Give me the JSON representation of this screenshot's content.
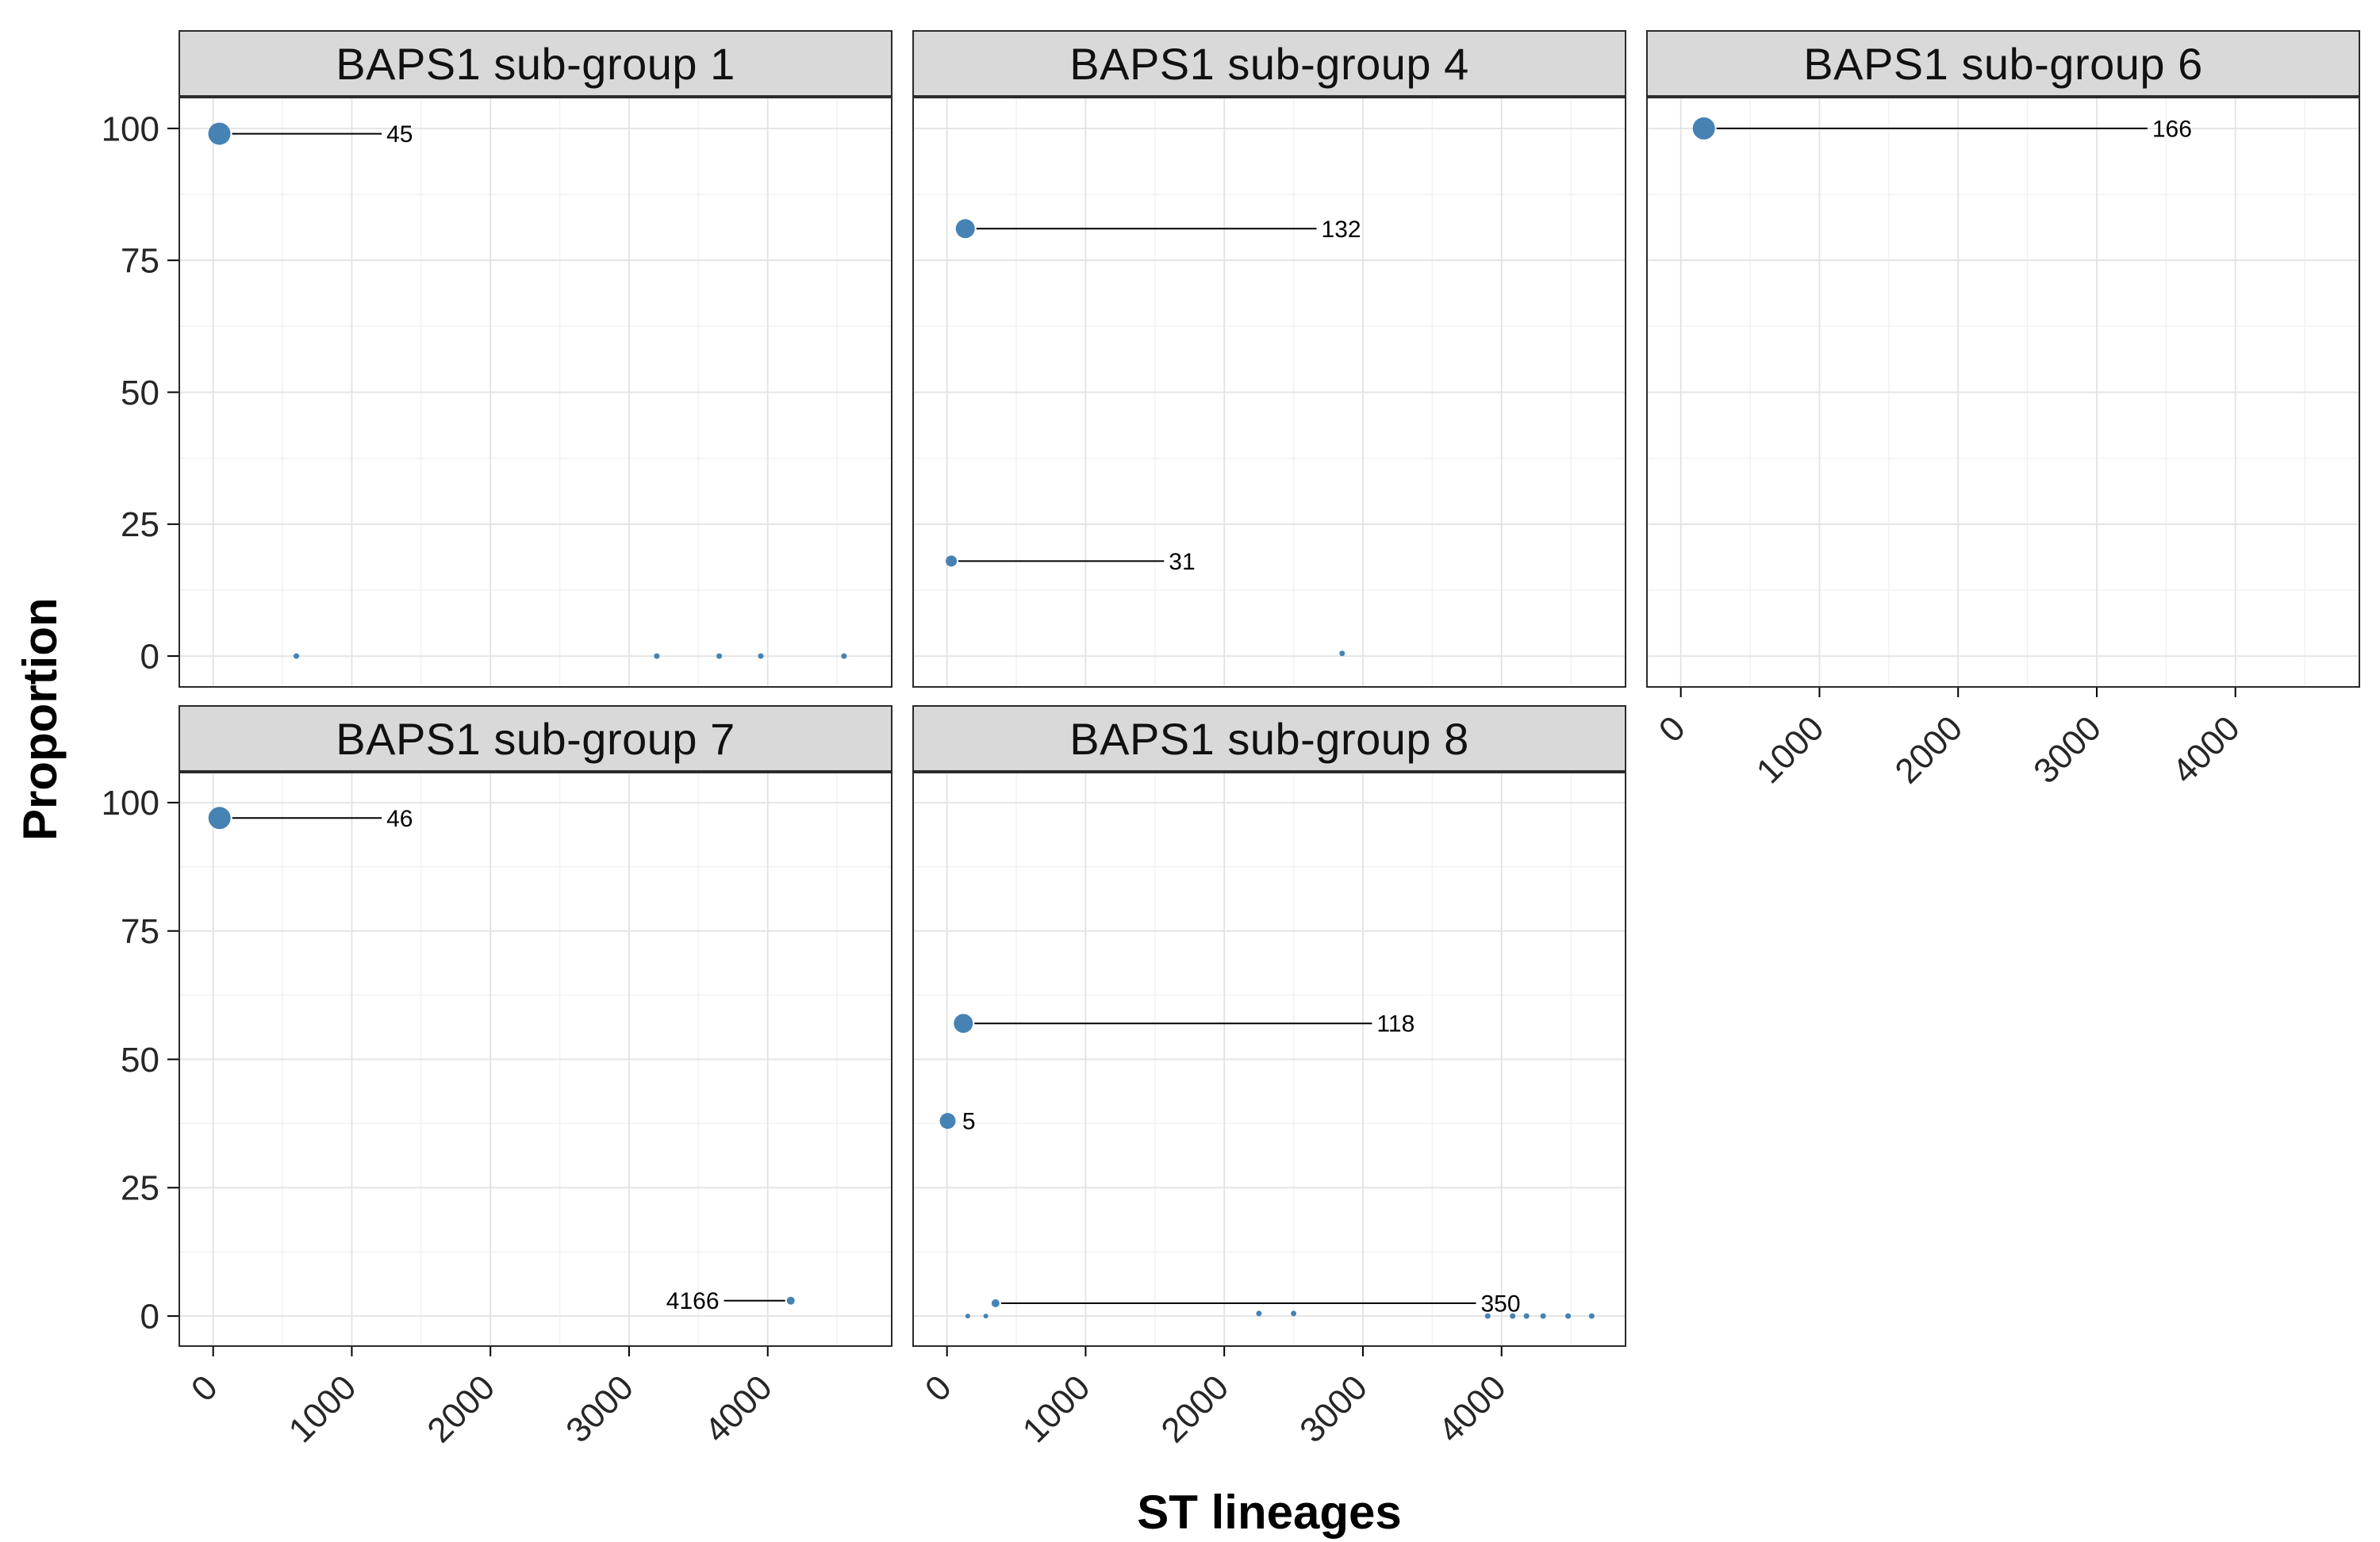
{
  "chart_data": {
    "type": "scatter",
    "xlabel": "ST lineages",
    "ylabel": "Proportion",
    "x_domain": [
      -250,
      4900
    ],
    "y_domain": [
      -6,
      106
    ],
    "x_ticks": [
      0,
      1000,
      2000,
      3000,
      4000
    ],
    "x_minor_ticks": [
      500,
      1500,
      2500,
      3500,
      4500
    ],
    "y_ticks": [
      0,
      25,
      50,
      75,
      100
    ],
    "y_minor_ticks": [
      12.5,
      37.5,
      62.5,
      87.5
    ],
    "point_color": "#4682B4",
    "strip_bg": "#d9d9d9",
    "panel_border": "#2b2b2b",
    "grid": true,
    "legend": "none",
    "layout": {
      "rows": 2,
      "cols": 3
    },
    "panels": [
      {
        "title": "BAPS1 sub-group 1",
        "points": [
          {
            "x": 45,
            "y": 99,
            "r": 14,
            "label": "45",
            "label_x": 1250
          },
          {
            "x": 600,
            "y": 0,
            "r": 3.5
          },
          {
            "x": 3200,
            "y": 0,
            "r": 3.5
          },
          {
            "x": 3650,
            "y": 0,
            "r": 3.5
          },
          {
            "x": 3950,
            "y": 0,
            "r": 3.5
          },
          {
            "x": 4550,
            "y": 0,
            "r": 3.5
          }
        ]
      },
      {
        "title": "BAPS1 sub-group 4",
        "points": [
          {
            "x": 132,
            "y": 81,
            "r": 12,
            "label": "132",
            "label_x": 2700
          },
          {
            "x": 31,
            "y": 18,
            "r": 7,
            "label": "31",
            "label_x": 1600
          },
          {
            "x": 2850,
            "y": 0.5,
            "r": 3.5
          }
        ]
      },
      {
        "title": "BAPS1 sub-group 6",
        "points": [
          {
            "x": 166,
            "y": 100,
            "r": 14,
            "label": "166",
            "label_x": 3400
          }
        ]
      },
      {
        "title": "BAPS1 sub-group 7",
        "points": [
          {
            "x": 46,
            "y": 97,
            "r": 14,
            "label": "46",
            "label_x": 1250
          },
          {
            "x": 4166,
            "y": 3,
            "r": 5,
            "label": "4166",
            "label_x": 3650,
            "label_side": "left"
          }
        ]
      },
      {
        "title": "BAPS1 sub-group 8",
        "points": [
          {
            "x": 118,
            "y": 57,
            "r": 12,
            "label": "118",
            "label_x": 3100
          },
          {
            "x": 5,
            "y": 38,
            "r": 10,
            "label": "5",
            "label_x": 110,
            "leader": false
          },
          {
            "x": 350,
            "y": 2.5,
            "r": 5,
            "label": "350",
            "label_x": 3850
          },
          {
            "x": 150,
            "y": 0,
            "r": 3
          },
          {
            "x": 280,
            "y": 0,
            "r": 3
          },
          {
            "x": 2250,
            "y": 0.5,
            "r": 3.5
          },
          {
            "x": 2500,
            "y": 0.5,
            "r": 3.5
          },
          {
            "x": 3900,
            "y": 0,
            "r": 3.5
          },
          {
            "x": 4080,
            "y": 0,
            "r": 3.5
          },
          {
            "x": 4180,
            "y": 0,
            "r": 3.5
          },
          {
            "x": 4300,
            "y": 0,
            "r": 3.5
          },
          {
            "x": 4480,
            "y": 0,
            "r": 3.5
          },
          {
            "x": 4650,
            "y": 0,
            "r": 3.5
          }
        ]
      }
    ]
  }
}
